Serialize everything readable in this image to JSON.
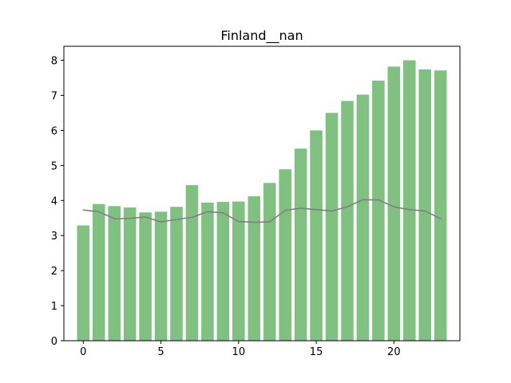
{
  "chart_data": {
    "type": "bar",
    "title": "Finland__nan",
    "xlabel": "",
    "ylabel": "",
    "x": [
      0,
      1,
      2,
      3,
      4,
      5,
      6,
      7,
      8,
      9,
      10,
      11,
      12,
      13,
      14,
      15,
      16,
      17,
      18,
      19,
      20,
      21,
      22,
      23
    ],
    "series": [
      {
        "kind": "bar",
        "color": "#80c080",
        "values": [
          3.29,
          3.9,
          3.84,
          3.8,
          3.66,
          3.68,
          3.82,
          4.44,
          3.94,
          3.96,
          3.97,
          4.12,
          4.5,
          4.89,
          5.48,
          6.0,
          6.5,
          6.84,
          7.02,
          7.42,
          7.82,
          8.0,
          7.74,
          7.71
        ]
      },
      {
        "kind": "line",
        "color": "#808080",
        "values": [
          3.73,
          3.68,
          3.48,
          3.49,
          3.53,
          3.39,
          3.46,
          3.52,
          3.68,
          3.65,
          3.4,
          3.38,
          3.39,
          3.72,
          3.78,
          3.74,
          3.7,
          3.82,
          4.02,
          4.02,
          3.82,
          3.74,
          3.7,
          3.48
        ]
      }
    ],
    "xlim": [
      -1.25,
      24.25
    ],
    "ylim": [
      0,
      8.4
    ],
    "xticks": [
      0,
      5,
      10,
      15,
      20
    ],
    "yticks": [
      0,
      1,
      2,
      3,
      4,
      5,
      6,
      7,
      8
    ],
    "grid": false
  }
}
